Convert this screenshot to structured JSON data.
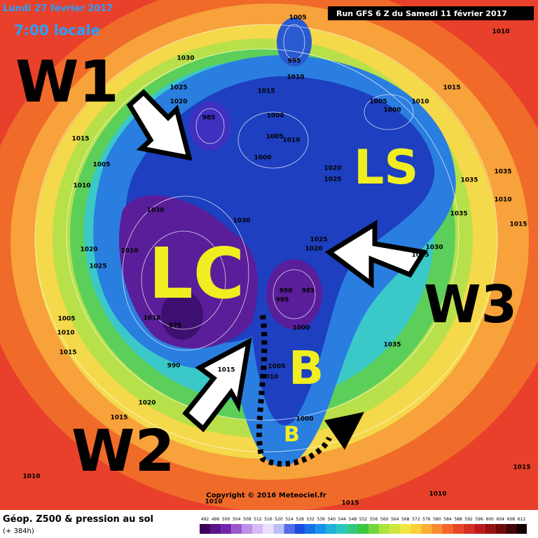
{
  "header": {
    "date": "Lundi 27 février 2017",
    "time": "7:00 locale",
    "run": "Run GFS 6 Z du Samedi 11 février 2017"
  },
  "annotations": [
    "W1",
    "LS",
    "LC",
    "W3",
    "B",
    "W2",
    "B"
  ],
  "pressure_labels": [
    "1005",
    "1010",
    "1030",
    "995",
    "1010",
    "1025",
    "1015",
    "1015",
    "1020",
    "1005",
    "1000",
    "1010",
    "985",
    "1000",
    "1005",
    "1010",
    "1000",
    "1015",
    "1005",
    "1020",
    "1025",
    "1035",
    "1035",
    "1010",
    "1010",
    "1030",
    "1030",
    "1035",
    "1015",
    "1025",
    "1020",
    "1030",
    "1035",
    "1020",
    "1010",
    "1025",
    "990",
    "985",
    "995",
    "1010",
    "1005",
    "975",
    "1000",
    "1010",
    "1015",
    "1035",
    "990",
    "1015",
    "1005",
    "1010",
    "1020",
    "1000",
    "1015",
    "1010",
    "1010",
    "1015",
    "1010",
    "1015"
  ],
  "footer": {
    "title": "Géop. Z500 & pression au sol",
    "subtitle": "(+ 384h)",
    "copyright": "Copyright © 2016 Meteociel.fr"
  },
  "scale": [
    492,
    496,
    500,
    504,
    508,
    512,
    516,
    520,
    524,
    528,
    532,
    536,
    540,
    544,
    548,
    552,
    556,
    560,
    564,
    568,
    572,
    576,
    580,
    584,
    588,
    592,
    596,
    600,
    604,
    608,
    612
  ]
}
